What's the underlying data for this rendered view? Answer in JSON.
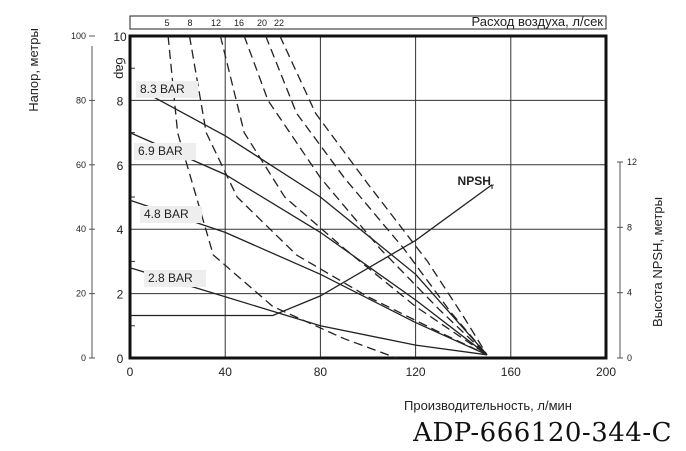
{
  "chart_data": {
    "type": "line",
    "xlabel": "Производительность, л/мин",
    "xlim": [
      0,
      200
    ],
    "x_ticks": [
      "0",
      "40",
      "80",
      "120",
      "160",
      "200"
    ],
    "ylabel_left_outer": "Напор, метры",
    "ylabel_left_inner": "бар",
    "ylim_bar": [
      0,
      10
    ],
    "y_ticks_bar": [
      "0",
      "2",
      "4",
      "6",
      "8",
      "10"
    ],
    "y_ticks_meters": [
      "0",
      "20",
      "40",
      "60",
      "80",
      "100"
    ],
    "ylabel_right": "Высота NPSH, метры",
    "y_ticks_npsh": [
      "0",
      "4",
      "8",
      "12"
    ],
    "air_axis_label": "Расход воздуха, л/сек",
    "air_ticks": [
      "5",
      "8",
      "12",
      "16",
      "20",
      "22"
    ],
    "grid": true,
    "pressure_series": [
      {
        "name": "8.3 BAR",
        "points": [
          [
            5,
            8.3
          ],
          [
            40,
            6.9
          ],
          [
            80,
            5.0
          ],
          [
            120,
            2.6
          ],
          [
            150,
            0.1
          ]
        ]
      },
      {
        "name": "6.9 BAR",
        "points": [
          [
            0,
            7.0
          ],
          [
            40,
            5.7
          ],
          [
            80,
            3.9
          ],
          [
            120,
            1.8
          ],
          [
            150,
            0.1
          ]
        ]
      },
      {
        "name": "4.8 BAR",
        "points": [
          [
            0,
            4.9
          ],
          [
            40,
            3.9
          ],
          [
            80,
            2.6
          ],
          [
            120,
            1.1
          ],
          [
            150,
            0.1
          ]
        ]
      },
      {
        "name": "2.8 BAR",
        "points": [
          [
            0,
            2.8
          ],
          [
            40,
            1.9
          ],
          [
            80,
            1.0
          ],
          [
            120,
            0.4
          ],
          [
            150,
            0.1
          ]
        ]
      }
    ],
    "air_series": [
      {
        "name": "5",
        "points": [
          [
            16,
            10
          ],
          [
            20,
            7.0
          ],
          [
            35,
            3.2
          ],
          [
            60,
            1.6
          ],
          [
            90,
            0.6
          ],
          [
            112,
            0
          ]
        ]
      },
      {
        "name": "8",
        "points": [
          [
            25,
            10
          ],
          [
            32,
            7.0
          ],
          [
            45,
            5.0
          ],
          [
            70,
            3.2
          ],
          [
            100,
            1.9
          ],
          [
            130,
            0.8
          ],
          [
            150,
            0.1
          ]
        ]
      },
      {
        "name": "12",
        "points": [
          [
            38,
            10
          ],
          [
            48,
            7.0
          ],
          [
            65,
            5.0
          ],
          [
            90,
            3.4
          ],
          [
            120,
            1.6
          ],
          [
            150,
            0.1
          ]
        ]
      },
      {
        "name": "16",
        "points": [
          [
            48,
            10
          ],
          [
            58,
            8.0
          ],
          [
            80,
            5.6
          ],
          [
            105,
            3.4
          ],
          [
            130,
            1.5
          ],
          [
            150,
            0.1
          ]
        ]
      },
      {
        "name": "20",
        "points": [
          [
            57,
            10
          ],
          [
            70,
            7.6
          ],
          [
            90,
            5.6
          ],
          [
            115,
            3.4
          ],
          [
            135,
            1.4
          ],
          [
            150,
            0.1
          ]
        ]
      },
      {
        "name": "22",
        "points": [
          [
            63,
            10
          ],
          [
            78,
            7.6
          ],
          [
            100,
            5.4
          ],
          [
            125,
            3.0
          ],
          [
            140,
            1.3
          ],
          [
            150,
            0.1
          ]
        ]
      }
    ],
    "npsh_series": {
      "name": "NPSHr",
      "points_meters": [
        [
          0,
          2.6
        ],
        [
          60,
          2.6
        ],
        [
          80,
          3.8
        ],
        [
          120,
          7.2
        ],
        [
          152,
          10.6
        ]
      ]
    }
  },
  "labels": {
    "npsh_main": "NPSH",
    "npsh_sub": "r"
  },
  "footer": {
    "code": "ADP-666120-344-C"
  }
}
